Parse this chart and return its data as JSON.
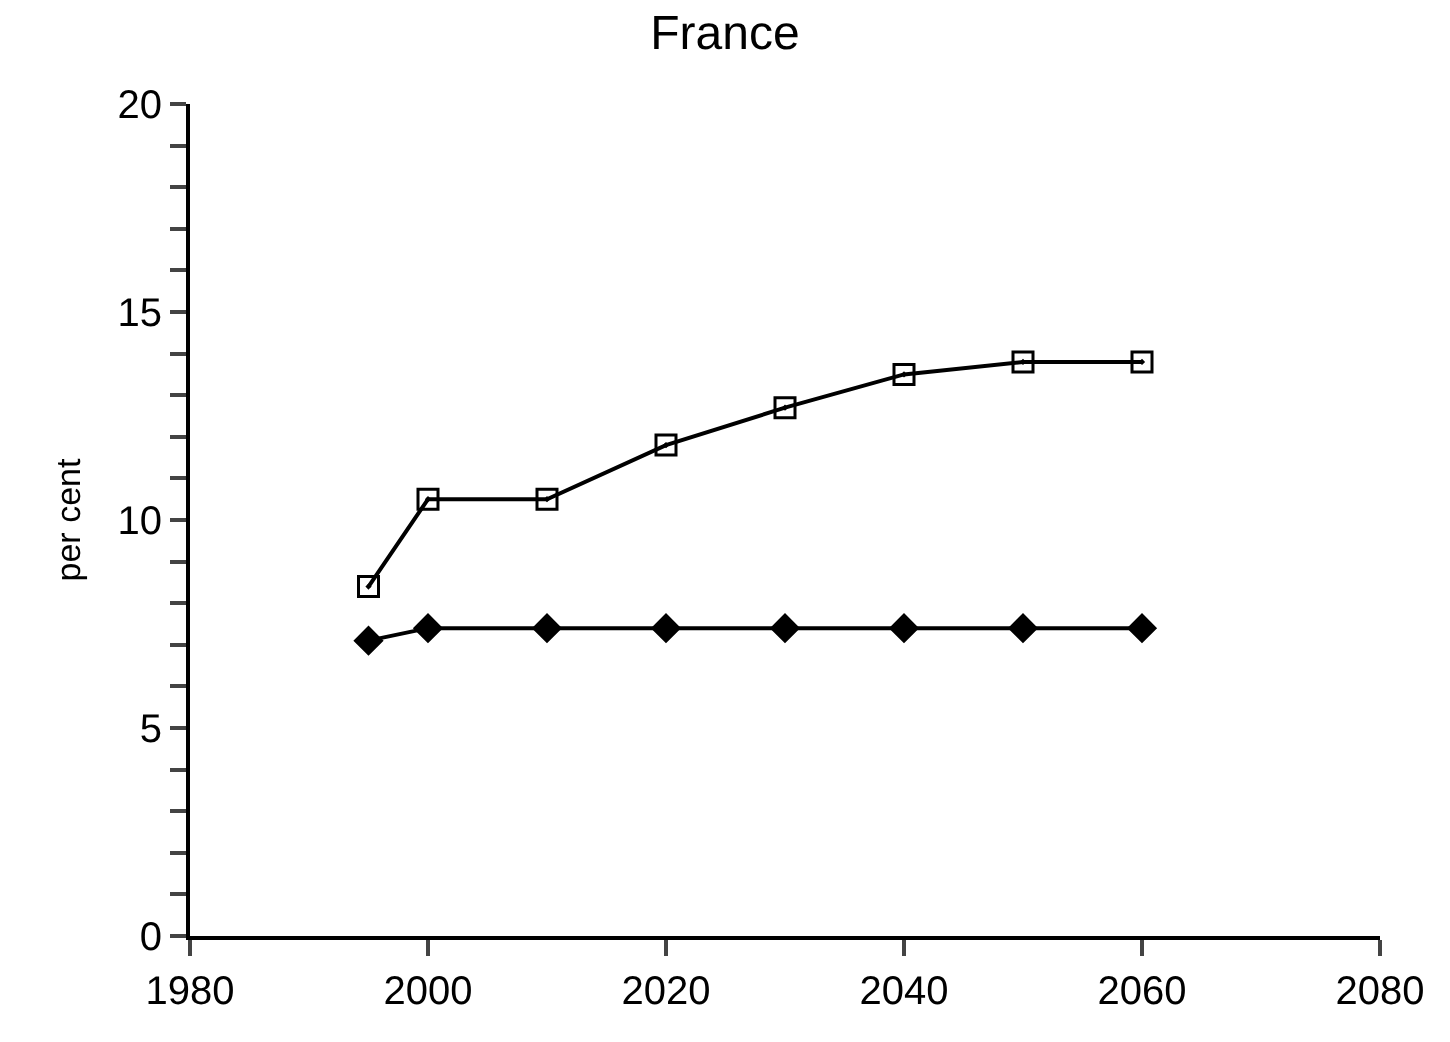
{
  "chart_data": {
    "type": "line",
    "title": "France",
    "ylabel": "per cent",
    "x": [
      1995,
      2000,
      2010,
      2020,
      2030,
      2040,
      2050,
      2060
    ],
    "series": [
      {
        "color": "#000000",
        "marker": "square",
        "values": [
          8.4,
          10.5,
          10.5,
          11.8,
          12.7,
          13.5,
          13.8,
          13.8
        ]
      },
      {
        "color": "#000000",
        "marker": "diamond",
        "values": [
          7.1,
          7.4,
          7.4,
          7.4,
          7.4,
          7.4,
          7.4,
          7.4
        ]
      }
    ],
    "xlim": [
      1980,
      2080
    ],
    "xticks": [
      1980,
      2000,
      2020,
      2040,
      2060,
      2080
    ],
    "ylim": [
      0,
      20
    ],
    "yticks": [
      0,
      {
        "value": 1,
        "label": null
      },
      {
        "value": 2,
        "label": null
      },
      {
        "value": 3,
        "label": null
      },
      {
        "value": 4,
        "label": null
      },
      5,
      {
        "value": 6,
        "label": null
      },
      {
        "value": 7,
        "label": null
      },
      {
        "value": 8,
        "label": null
      },
      {
        "value": 9,
        "label": null
      },
      10,
      {
        "value": 11,
        "label": null
      },
      {
        "value": 12,
        "label": null
      },
      {
        "value": 13,
        "label": null
      },
      {
        "value": 14,
        "label": null
      },
      15,
      {
        "value": 16,
        "label": null
      },
      {
        "value": 17,
        "label": null
      },
      {
        "value": 18,
        "label": null
      },
      {
        "value": 19,
        "label": null
      },
      20
    ],
    "grid": false,
    "line_style": "solid"
  }
}
